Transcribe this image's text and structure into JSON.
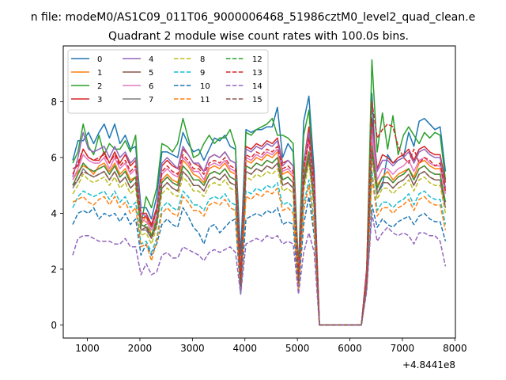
{
  "chart_data": {
    "type": "line",
    "suptitle": "n file: modeM0/AS1C09_011T06_9000006468_51986cztM0_level2_quad_clean.e",
    "title": "Quadrant 2 module wise count rates with 100.0s bins.",
    "xlabel": "",
    "ylabel": "",
    "x_offset_label": "+4.8441e8",
    "xlim": [
      540,
      8010
    ],
    "ylim": [
      -0.47,
      10
    ],
    "xticks": [
      1000,
      2000,
      3000,
      4000,
      5000,
      6000,
      7000,
      8000
    ],
    "xtick_labels": [
      "1000",
      "2000",
      "3000",
      "4000",
      "5000",
      "6000",
      "7000",
      "8000"
    ],
    "yticks": [
      0,
      2,
      4,
      6,
      8
    ],
    "ytick_labels": [
      "0",
      "2",
      "4",
      "6",
      "8"
    ],
    "grid": false,
    "legend": {
      "position": "top-left",
      "columns": 4,
      "labels": [
        "0",
        "1",
        "2",
        "3",
        "4",
        "5",
        "6",
        "7",
        "8",
        "9",
        "10",
        "11",
        "12",
        "13",
        "14",
        "15"
      ]
    },
    "x": [
      720,
      820,
      920,
      1020,
      1120,
      1220,
      1320,
      1420,
      1520,
      1620,
      1720,
      1820,
      1920,
      2020,
      2120,
      2220,
      2320,
      2420,
      2520,
      2620,
      2720,
      2820,
      2920,
      3020,
      3120,
      3220,
      3320,
      3420,
      3520,
      3620,
      3720,
      3820,
      3920,
      4020,
      4120,
      4220,
      4320,
      4420,
      4520,
      4620,
      4720,
      4820,
      4920,
      5020,
      5120,
      5220,
      5320,
      5420,
      6220,
      6320,
      6420,
      6520,
      6620,
      6720,
      6820,
      6920,
      7020,
      7120,
      7220,
      7320,
      7420,
      7520,
      7620,
      7720,
      7820
    ],
    "series": [
      {
        "name": "0",
        "color": "#1f77b4",
        "dash": "solid",
        "values": [
          5.9,
          6.6,
          6.6,
          6.9,
          6.5,
          6.9,
          7.2,
          6.7,
          7.2,
          6.5,
          6.8,
          6.3,
          6.4,
          4.2,
          4.2,
          3.8,
          4.6,
          6.2,
          6.2,
          6.1,
          6.0,
          6.9,
          6.5,
          6.2,
          6.3,
          5.9,
          6.3,
          6.7,
          6.6,
          6.8,
          6.4,
          6.3,
          2.5,
          7.0,
          6.9,
          7.0,
          7.0,
          7.1,
          7.1,
          7.8,
          6.0,
          6.5,
          6.2,
          2.0,
          7.3,
          8.2,
          5.5,
          0,
          0,
          2.0,
          8.3,
          4.7,
          5.0,
          6.1,
          5.8,
          5.9,
          6.0,
          6.9,
          6.4,
          7.3,
          7.4,
          7.2,
          7.0,
          7.1,
          5.5
        ]
      },
      {
        "name": "1",
        "color": "#ff7f0e",
        "dash": "solid",
        "values": [
          5.2,
          5.5,
          5.7,
          5.6,
          5.4,
          5.7,
          5.8,
          5.5,
          5.8,
          5.4,
          5.6,
          5.2,
          5.3,
          3.6,
          3.9,
          3.2,
          3.8,
          5.2,
          5.4,
          5.2,
          5.1,
          5.9,
          5.7,
          5.4,
          5.3,
          5.1,
          5.6,
          5.7,
          5.6,
          5.8,
          5.5,
          5.4,
          1.6,
          5.9,
          5.8,
          6.0,
          5.9,
          6.1,
          6.0,
          6.2,
          5.4,
          5.5,
          5.3,
          1.8,
          5.3,
          6.6,
          4.8,
          0,
          0,
          1.8,
          6.7,
          5.0,
          5.3,
          5.5,
          5.2,
          5.4,
          5.5,
          5.6,
          5.3,
          5.8,
          5.9,
          5.7,
          5.6,
          5.6,
          4.8
        ]
      },
      {
        "name": "2",
        "color": "#2ca02c",
        "dash": "solid",
        "values": [
          5.8,
          6.2,
          7.2,
          6.4,
          6.1,
          6.8,
          6.1,
          6.5,
          6.3,
          6.3,
          6.6,
          6.2,
          6.8,
          3.6,
          4.6,
          4.2,
          4.9,
          6.5,
          6.4,
          6.2,
          6.5,
          7.4,
          6.7,
          6.0,
          6.1,
          6.5,
          6.8,
          6.5,
          6.7,
          6.7,
          7.0,
          6.4,
          1.7,
          6.9,
          6.8,
          7.0,
          7.1,
          7.2,
          7.4,
          6.8,
          6.8,
          6.7,
          6.5,
          2.0,
          6.8,
          7.7,
          5.0,
          0,
          0,
          1.9,
          9.5,
          6.2,
          7.6,
          6.3,
          7.5,
          6.1,
          6.8,
          7.1,
          6.8,
          6.5,
          6.9,
          6.7,
          6.9,
          6.8,
          5.2
        ]
      },
      {
        "name": "3",
        "color": "#d62728",
        "dash": "solid",
        "values": [
          5.6,
          5.7,
          6.3,
          6.0,
          5.9,
          5.9,
          6.2,
          5.8,
          6.2,
          5.8,
          6.1,
          5.7,
          5.9,
          4.0,
          4.0,
          3.6,
          4.2,
          5.7,
          5.9,
          5.7,
          5.6,
          6.3,
          6.1,
          5.8,
          5.7,
          5.5,
          6.0,
          6.1,
          6.0,
          6.2,
          5.9,
          5.8,
          1.8,
          6.4,
          6.3,
          6.5,
          6.4,
          6.6,
          6.5,
          6.7,
          5.8,
          5.9,
          5.7,
          1.9,
          5.8,
          7.1,
          5.1,
          0,
          0,
          2.0,
          7.4,
          5.6,
          6.1,
          6.0,
          5.8,
          6.0,
          6.1,
          6.3,
          5.9,
          6.3,
          6.4,
          6.2,
          6.1,
          6.1,
          5.1
        ]
      },
      {
        "name": "4",
        "color": "#9467bd",
        "dash": "solid",
        "values": [
          5.3,
          6.0,
          6.9,
          6.3,
          6.2,
          6.3,
          6.4,
          6.0,
          6.4,
          6.0,
          6.2,
          5.8,
          6.0,
          4.0,
          3.9,
          3.5,
          4.1,
          5.8,
          6.0,
          5.8,
          5.6,
          6.4,
          6.1,
          5.8,
          5.8,
          5.5,
          6.0,
          6.1,
          6.0,
          6.2,
          5.9,
          5.8,
          1.4,
          6.3,
          6.2,
          6.4,
          6.3,
          6.5,
          6.4,
          6.6,
          5.7,
          5.9,
          5.7,
          1.8,
          5.8,
          6.9,
          4.9,
          0,
          0,
          1.8,
          7.1,
          5.5,
          5.9,
          5.9,
          5.7,
          5.9,
          6.0,
          6.2,
          5.8,
          6.2,
          6.3,
          6.1,
          6.0,
          6.0,
          4.9
        ]
      },
      {
        "name": "5",
        "color": "#8c564b",
        "dash": "solid",
        "values": [
          5.0,
          5.4,
          5.8,
          5.6,
          5.5,
          5.6,
          5.7,
          5.4,
          5.7,
          5.3,
          5.5,
          5.1,
          5.3,
          3.6,
          3.5,
          3.2,
          3.7,
          5.1,
          5.3,
          5.1,
          5.0,
          5.7,
          5.5,
          5.2,
          5.2,
          5.0,
          5.4,
          5.5,
          5.4,
          5.6,
          5.3,
          5.2,
          1.4,
          5.7,
          5.6,
          5.8,
          5.7,
          5.9,
          5.8,
          6.0,
          5.2,
          5.3,
          5.1,
          1.6,
          5.2,
          6.2,
          4.5,
          0,
          0,
          1.6,
          6.4,
          4.9,
          5.3,
          5.3,
          5.1,
          5.3,
          5.4,
          5.6,
          5.2,
          5.6,
          5.7,
          5.5,
          5.4,
          5.4,
          4.4
        ]
      },
      {
        "name": "6",
        "color": "#e377c2",
        "dash": "solid",
        "values": [
          5.2,
          5.6,
          6.1,
          5.9,
          5.8,
          5.8,
          6.0,
          5.6,
          6.0,
          5.6,
          5.8,
          5.4,
          5.6,
          3.8,
          3.7,
          3.4,
          3.9,
          5.4,
          5.6,
          5.4,
          5.3,
          6.0,
          5.8,
          5.5,
          5.5,
          5.2,
          5.7,
          5.8,
          5.7,
          5.9,
          5.6,
          5.5,
          1.5,
          6.0,
          5.9,
          6.1,
          6.0,
          6.2,
          6.1,
          6.3,
          5.5,
          5.6,
          5.4,
          1.7,
          5.5,
          6.6,
          4.8,
          0,
          0,
          1.7,
          6.8,
          5.2,
          5.6,
          5.6,
          5.4,
          5.6,
          5.7,
          5.9,
          5.5,
          5.9,
          6.0,
          5.8,
          5.7,
          5.7,
          4.7
        ]
      },
      {
        "name": "7",
        "color": "#7f7f7f",
        "dash": "solid",
        "values": [
          4.9,
          5.2,
          5.6,
          5.4,
          5.3,
          5.4,
          5.5,
          5.2,
          5.5,
          5.1,
          5.3,
          4.9,
          5.1,
          3.4,
          3.4,
          3.1,
          3.6,
          4.9,
          5.1,
          4.9,
          4.8,
          5.5,
          5.3,
          5.0,
          5.0,
          4.8,
          5.2,
          5.3,
          5.2,
          5.4,
          5.1,
          5.0,
          1.3,
          5.5,
          5.4,
          5.6,
          5.5,
          5.7,
          5.6,
          5.8,
          5.0,
          5.1,
          4.9,
          1.5,
          5.0,
          6.0,
          4.3,
          0,
          0,
          1.5,
          6.2,
          4.7,
          5.1,
          5.1,
          4.9,
          5.1,
          5.2,
          5.4,
          5.0,
          5.4,
          5.5,
          5.3,
          5.2,
          5.2,
          4.2
        ]
      },
      {
        "name": "8",
        "color": "#bcbd22",
        "dash": "dashed",
        "values": [
          4.7,
          5.0,
          5.4,
          5.2,
          5.1,
          5.2,
          5.3,
          5.0,
          5.3,
          4.9,
          5.1,
          4.7,
          4.9,
          3.2,
          3.3,
          2.9,
          3.5,
          4.7,
          4.9,
          4.7,
          4.6,
          5.3,
          5.1,
          4.8,
          4.8,
          4.6,
          5.0,
          5.1,
          5.0,
          5.2,
          4.9,
          4.8,
          1.3,
          5.3,
          5.2,
          5.4,
          5.3,
          5.5,
          5.4,
          5.6,
          4.8,
          4.9,
          4.7,
          1.5,
          4.8,
          5.8,
          4.1,
          0,
          0,
          1.5,
          6.0,
          4.5,
          4.9,
          4.9,
          4.7,
          4.9,
          5.0,
          5.2,
          4.8,
          5.2,
          5.3,
          5.1,
          5.0,
          5.0,
          4.0
        ]
      },
      {
        "name": "9",
        "color": "#17becf",
        "dash": "dashed",
        "values": [
          4.2,
          4.6,
          4.8,
          4.7,
          4.6,
          4.7,
          4.8,
          4.5,
          4.8,
          4.4,
          4.6,
          4.2,
          4.4,
          2.9,
          3.0,
          2.6,
          3.1,
          4.2,
          4.4,
          4.2,
          4.1,
          4.8,
          4.6,
          4.3,
          4.3,
          4.1,
          4.5,
          4.6,
          4.5,
          4.7,
          4.4,
          4.3,
          1.2,
          4.8,
          4.7,
          4.9,
          4.8,
          5.0,
          4.9,
          5.1,
          4.3,
          4.4,
          4.2,
          1.3,
          4.3,
          5.2,
          3.7,
          0,
          0,
          1.4,
          5.5,
          4.1,
          4.4,
          4.4,
          4.2,
          4.4,
          4.5,
          4.7,
          4.3,
          4.7,
          4.8,
          4.6,
          4.5,
          4.5,
          3.6
        ]
      },
      {
        "name": "10",
        "color": "#1f77b4",
        "dash": "dashed",
        "values": [
          3.6,
          4.0,
          4.1,
          4.0,
          4.2,
          3.8,
          4.0,
          3.9,
          4.0,
          3.7,
          4.0,
          3.6,
          3.8,
          2.5,
          2.9,
          2.5,
          2.9,
          3.6,
          3.8,
          3.6,
          3.5,
          4.2,
          3.9,
          3.5,
          3.3,
          2.9,
          3.5,
          3.6,
          3.3,
          3.5,
          3.7,
          3.8,
          1.1,
          3.8,
          3.9,
          4.0,
          3.9,
          4.1,
          4.0,
          4.2,
          3.6,
          3.7,
          3.6,
          1.2,
          3.6,
          4.6,
          3.2,
          0,
          0,
          1.3,
          4.3,
          3.5,
          3.8,
          3.6,
          3.5,
          3.7,
          3.8,
          3.9,
          3.6,
          3.9,
          4.0,
          3.8,
          3.7,
          3.7,
          3.0
        ]
      },
      {
        "name": "11",
        "color": "#ff7f0e",
        "dash": "dashed",
        "values": [
          4.4,
          4.5,
          4.6,
          4.4,
          4.3,
          4.5,
          4.6,
          4.3,
          4.6,
          4.2,
          4.4,
          4.0,
          4.2,
          2.8,
          2.9,
          2.3,
          3.0,
          4.0,
          4.2,
          4.0,
          3.9,
          4.6,
          4.4,
          4.1,
          4.1,
          3.9,
          4.3,
          4.4,
          4.3,
          4.5,
          4.2,
          4.1,
          1.2,
          4.6,
          4.5,
          4.7,
          4.6,
          4.8,
          4.7,
          4.9,
          4.1,
          4.2,
          4.0,
          1.3,
          4.1,
          5.0,
          3.5,
          0,
          0,
          1.4,
          5.3,
          3.9,
          4.2,
          4.2,
          4.0,
          4.2,
          4.3,
          4.5,
          4.1,
          4.5,
          4.6,
          4.4,
          4.3,
          4.3,
          3.4
        ]
      },
      {
        "name": "12",
        "color": "#2ca02c",
        "dash": "dashed",
        "values": [
          5.0,
          5.4,
          5.8,
          5.6,
          5.5,
          5.6,
          5.7,
          5.4,
          5.7,
          5.3,
          5.5,
          5.1,
          5.3,
          3.5,
          3.6,
          3.2,
          3.8,
          5.1,
          5.3,
          5.1,
          5.0,
          5.7,
          5.5,
          5.2,
          5.2,
          5.0,
          5.4,
          5.5,
          5.4,
          5.6,
          5.3,
          5.2,
          1.4,
          5.7,
          5.6,
          5.8,
          5.7,
          5.9,
          5.8,
          6.0,
          5.2,
          5.3,
          5.1,
          1.6,
          5.2,
          6.2,
          4.5,
          0,
          0,
          1.6,
          6.4,
          4.9,
          5.3,
          5.3,
          5.1,
          5.3,
          5.4,
          5.6,
          5.2,
          5.6,
          5.7,
          5.5,
          5.4,
          5.4,
          4.4
        ]
      },
      {
        "name": "13",
        "color": "#d62728",
        "dash": "dashed",
        "values": [
          5.4,
          5.8,
          6.3,
          6.0,
          5.9,
          6.0,
          6.1,
          5.8,
          6.1,
          5.7,
          5.9,
          5.5,
          5.7,
          3.8,
          3.9,
          3.5,
          4.1,
          5.5,
          5.7,
          5.5,
          5.4,
          6.1,
          5.9,
          5.6,
          5.6,
          5.4,
          5.8,
          5.9,
          5.8,
          6.0,
          5.7,
          5.6,
          1.5,
          6.1,
          6.0,
          6.2,
          6.1,
          6.3,
          6.2,
          6.4,
          5.6,
          5.7,
          5.5,
          1.7,
          5.6,
          6.7,
          4.9,
          0,
          0,
          1.7,
          8.0,
          6.7,
          7.0,
          7.2,
          7.1,
          6.4,
          6.0,
          5.8,
          6.3,
          5.8,
          6.0,
          5.9,
          5.7,
          5.8,
          4.8
        ]
      },
      {
        "name": "14",
        "color": "#9467bd",
        "dash": "dashed",
        "values": [
          2.5,
          3.1,
          3.2,
          3.2,
          3.1,
          3.0,
          3.0,
          3.0,
          2.9,
          2.9,
          3.1,
          2.8,
          2.8,
          1.8,
          2.2,
          1.8,
          1.9,
          2.5,
          2.6,
          2.4,
          2.4,
          2.8,
          2.7,
          2.6,
          2.5,
          2.3,
          2.6,
          2.7,
          2.6,
          2.7,
          2.8,
          2.6,
          1.1,
          2.9,
          3.0,
          3.1,
          3.0,
          3.2,
          3.1,
          3.2,
          2.9,
          3.0,
          2.9,
          1.1,
          2.6,
          3.3,
          2.6,
          0,
          0,
          1.2,
          4.0,
          3.0,
          3.3,
          3.5,
          3.3,
          3.2,
          3.3,
          3.2,
          2.9,
          3.3,
          3.3,
          3.2,
          3.2,
          3.0,
          2.1
        ]
      },
      {
        "name": "15",
        "color": "#8c564b",
        "dash": "dashed",
        "values": [
          5.0,
          5.2,
          5.5,
          5.4,
          5.3,
          5.4,
          5.5,
          5.2,
          5.5,
          5.1,
          5.3,
          4.9,
          5.1,
          3.4,
          3.5,
          3.1,
          3.6,
          4.9,
          5.1,
          4.9,
          4.8,
          5.5,
          5.3,
          5.0,
          5.0,
          4.8,
          5.2,
          5.3,
          5.2,
          5.4,
          5.1,
          5.0,
          1.4,
          5.5,
          5.4,
          5.6,
          5.5,
          5.7,
          5.6,
          5.8,
          5.0,
          5.1,
          4.9,
          1.5,
          5.0,
          6.0,
          4.3,
          0,
          0,
          1.5,
          6.2,
          4.7,
          5.1,
          5.1,
          4.9,
          5.1,
          5.2,
          5.4,
          5.0,
          5.4,
          5.5,
          5.3,
          5.2,
          5.2,
          4.2
        ]
      }
    ]
  }
}
